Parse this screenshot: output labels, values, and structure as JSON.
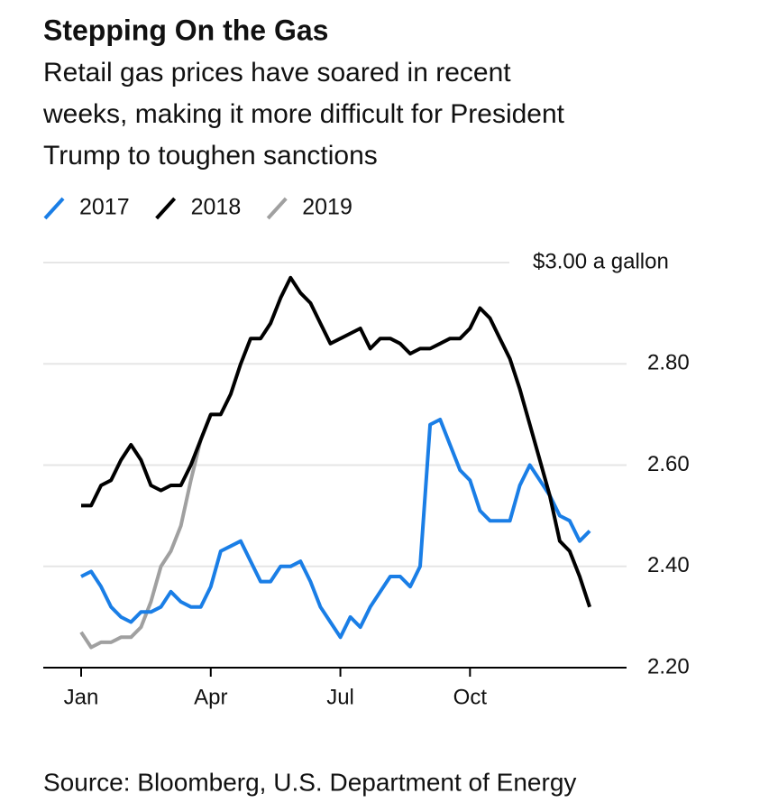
{
  "chart_data": {
    "type": "line",
    "title": "Stepping On the Gas",
    "subtitle": [
      "Retail gas prices have soared in recent",
      "weeks, making it more difficult for President",
      "Trump to toughen sanctions"
    ],
    "source": "Source: Bloomberg, U.S. Department of Energy",
    "categories": [
      "Jan",
      null,
      null,
      null,
      null,
      null,
      null,
      null,
      null,
      null,
      null,
      null,
      null,
      "Apr",
      null,
      null,
      null,
      null,
      null,
      null,
      null,
      null,
      null,
      null,
      null,
      null,
      "Jul",
      null,
      null,
      null,
      null,
      null,
      null,
      null,
      null,
      null,
      null,
      null,
      null,
      "Oct",
      null,
      null,
      null,
      null,
      null,
      null,
      null,
      null,
      null,
      null,
      null,
      null
    ],
    "ylim": [
      2.2,
      3.0
    ],
    "yticks": [
      {
        "value": 2.2,
        "label": "2.20"
      },
      {
        "value": 2.4,
        "label": "2.40"
      },
      {
        "value": 2.6,
        "label": "2.60"
      },
      {
        "value": 2.8,
        "label": "2.80"
      },
      {
        "value": 3.0,
        "label": "$3.00 a gallon"
      }
    ],
    "grid": true,
    "series": [
      {
        "name": "2017",
        "color": "#1a7ee6",
        "values": [
          2.38,
          2.39,
          2.36,
          2.32,
          2.3,
          2.29,
          2.31,
          2.31,
          2.32,
          2.35,
          2.33,
          2.32,
          2.32,
          2.36,
          2.43,
          2.44,
          2.45,
          2.41,
          2.37,
          2.37,
          2.4,
          2.4,
          2.41,
          2.37,
          2.32,
          2.29,
          2.26,
          2.3,
          2.28,
          2.32,
          2.35,
          2.38,
          2.38,
          2.36,
          2.4,
          2.68,
          2.69,
          2.64,
          2.59,
          2.57,
          2.51,
          2.49,
          2.49,
          2.49,
          2.56,
          2.6,
          2.57,
          2.54,
          2.5,
          2.49,
          2.45,
          2.47
        ]
      },
      {
        "name": "2018",
        "color": "#000000",
        "values": [
          2.52,
          2.52,
          2.56,
          2.57,
          2.61,
          2.64,
          2.61,
          2.56,
          2.55,
          2.56,
          2.56,
          2.6,
          2.65,
          2.7,
          2.7,
          2.74,
          2.8,
          2.85,
          2.85,
          2.88,
          2.93,
          2.97,
          2.94,
          2.92,
          2.88,
          2.84,
          2.85,
          2.86,
          2.87,
          2.83,
          2.85,
          2.85,
          2.84,
          2.82,
          2.83,
          2.83,
          2.84,
          2.85,
          2.85,
          2.87,
          2.91,
          2.89,
          2.85,
          2.81,
          2.75,
          2.68,
          2.61,
          2.54,
          2.45,
          2.43,
          2.38,
          2.32
        ]
      },
      {
        "name": "2019",
        "color": "#a0a0a0",
        "values": [
          2.27,
          2.24,
          2.25,
          2.25,
          2.26,
          2.26,
          2.28,
          2.33,
          2.4,
          2.43,
          2.48,
          2.57,
          2.65,
          2.7,
          null,
          null,
          null,
          null,
          null,
          null,
          null,
          null,
          null,
          null,
          null,
          null,
          null,
          null,
          null,
          null,
          null,
          null,
          null,
          null,
          null,
          null,
          null,
          null,
          null,
          null,
          null,
          null,
          null,
          null,
          null,
          null,
          null,
          null,
          null,
          null,
          null,
          null
        ]
      }
    ]
  }
}
